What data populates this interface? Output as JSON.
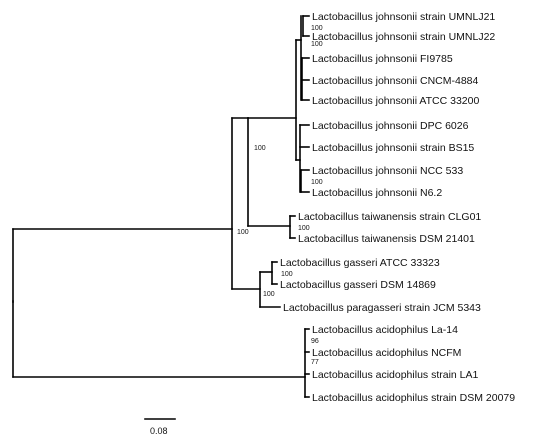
{
  "tree": {
    "taxa": [
      "Lactobacillus johnsonii strain UMNLJ21",
      "Lactobacillus johnsonii strain UMNLJ22",
      "Lactobacillus johnsonii FI9785",
      "Lactobacillus johnsonii CNCM-4884",
      "Lactobacillus johnsonii ATCC 33200",
      "Lactobacillus johnsonii DPC 6026",
      "Lactobacillus johnsonii strain BS15",
      "Lactobacillus johnsonii NCC 533",
      "Lactobacillus johnsonii N6.2",
      "Lactobacillus taiwanensis strain CLG01",
      "Lactobacillus taiwanensis DSM 21401",
      "Lactobacillus gasseri ATCC 33323",
      "Lactobacillus gasseri DSM 14869",
      "Lactobacillus paragasseri strain JCM 5343",
      "Lactobacillus acidophilus La-14",
      "Lactobacillus acidophilus NCFM",
      "Lactobacillus acidophilus strain LA1",
      "Lactobacillus acidophilus strain DSM 20079"
    ],
    "support_values": [
      "100",
      "100",
      "100",
      "100",
      "100",
      "100",
      "100",
      "100",
      "96",
      "77"
    ],
    "scale_bar_label": "0.08"
  }
}
